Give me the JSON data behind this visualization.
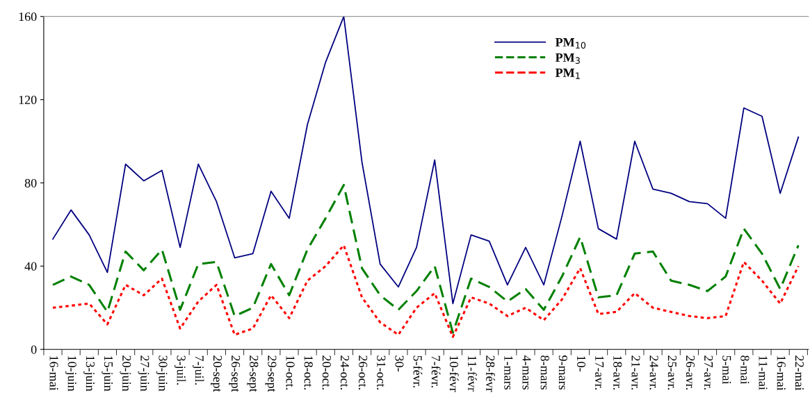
{
  "chart_data": {
    "type": "line",
    "categories": [
      "16-mai",
      "10-juin",
      "13-juin",
      "15-juin",
      "20-juin",
      "27-juin",
      "30-juin",
      "3-juil.",
      "7-juil.",
      "20-sept",
      "26-sept",
      "28-sept",
      "29-sept",
      "10-oct.",
      "18-oct.",
      "20-oct.",
      "24-oct.",
      "26-oct.",
      "31-oct.",
      "30-",
      "5-févr.",
      "7-févr.",
      "10-févr",
      "11-févr",
      "28-févr",
      "1-mars",
      "4-mars",
      "8-mars",
      "9-mars",
      "10-",
      "17-avr.",
      "18-avr.",
      "21-avr.",
      "24-avr.",
      "25-avr.",
      "26-avr.",
      "27-avr.",
      "5-mai",
      "8-mai",
      "11-mai",
      "16-mai",
      "22-mai"
    ],
    "series": [
      {
        "name": "PM$_{10}$",
        "color": "#000080",
        "line_style": "solid",
        "values": [
          53,
          67,
          55,
          37,
          89,
          81,
          86,
          49,
          89,
          71,
          44,
          46,
          76,
          63,
          108,
          138,
          160,
          90,
          41,
          30,
          49,
          91,
          22,
          55,
          52,
          31,
          49,
          31,
          64,
          100,
          58,
          53,
          100,
          77,
          75,
          71,
          70,
          63,
          116,
          112,
          75,
          102
        ]
      },
      {
        "name": "PM$_{3}$",
        "color": "#008000",
        "line_style": "dashed",
        "values": [
          31,
          35,
          31,
          18,
          47,
          38,
          48,
          19,
          41,
          42,
          16,
          20,
          41,
          26,
          48,
          63,
          79,
          39,
          26,
          19,
          28,
          40,
          8,
          34,
          30,
          23,
          29,
          19,
          35,
          54,
          25,
          26,
          46,
          47,
          33,
          31,
          28,
          35,
          58,
          46,
          29,
          50
        ]
      },
      {
        "name": "PM$_{1}$",
        "color": "#ff0000",
        "line_style": "dotted",
        "values": [
          20,
          21,
          22,
          12,
          31,
          26,
          34,
          10,
          23,
          31,
          7,
          10,
          26,
          15,
          33,
          40,
          50,
          25,
          13,
          7,
          20,
          27,
          6,
          25,
          22,
          16,
          20,
          14,
          24,
          39,
          17,
          18,
          27,
          20,
          18,
          16,
          15,
          16,
          42,
          33,
          22,
          40
        ]
      }
    ],
    "ylim": [
      0,
      160
    ],
    "yticks": [
      0,
      40,
      80,
      120,
      160
    ],
    "grid": false,
    "legend": "top"
  }
}
